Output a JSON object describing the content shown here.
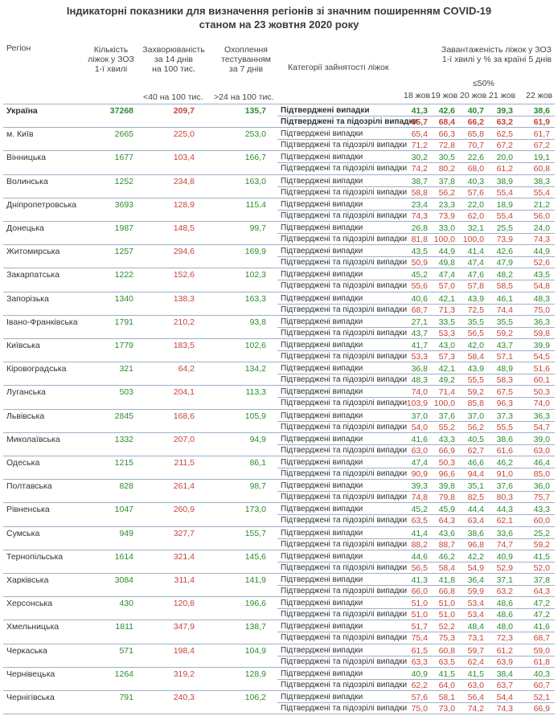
{
  "title": {
    "line1": "Індикаторні показники для визначення регіонів зі значним поширенням COVID-19",
    "line2": "станом на 23 жовтня 2020 року"
  },
  "headers": {
    "region": "Регіон",
    "beds": [
      "Кількість",
      "ліжок у ЗОЗ",
      "1-ї хвилі"
    ],
    "incidence": [
      "Захворюваність",
      "за 14 днів",
      "на 100 тис."
    ],
    "testing": [
      "Охоплення",
      "тестуванням",
      "за 7 днів"
    ],
    "category": "Категорії зайнятості ліжок",
    "load": [
      "Завантаженість ліжок у ЗОЗ",
      "1-ї хвилі у % за країні 5 днів"
    ],
    "threshold_incidence": "<40 на 100 тис.",
    "threshold_testing": ">24 на 100 тис.",
    "threshold_load": "≤50%",
    "days": [
      "18 жов",
      "19 жов",
      "20 жов",
      "21 жов",
      "22 жов"
    ]
  },
  "categories": {
    "confirmed": "Підтверджені випадки",
    "suspected": "Підтверджені та підозрілі випадки"
  },
  "rows": [
    {
      "name": "Україна",
      "beds": "37268",
      "inc": "209,7",
      "test": "135,7",
      "c": [
        "41,3",
        "42,6",
        "40,7",
        "39,3",
        "38,6"
      ],
      "s": [
        "65,7",
        "68,4",
        "66,2",
        "63,2",
        "61,9"
      ]
    },
    {
      "name": "м. Київ",
      "beds": "2665",
      "inc": "225,0",
      "test": "253,0",
      "c": [
        "65,4",
        "66,3",
        "65,8",
        "62,5",
        "61,7"
      ],
      "s": [
        "71,2",
        "72,8",
        "70,7",
        "67,2",
        "67,2"
      ]
    },
    {
      "name": "Вінницька",
      "beds": "1677",
      "inc": "103,4",
      "test": "166,7",
      "c": [
        "30,2",
        "30,5",
        "22,6",
        "20,0",
        "19,1"
      ],
      "s": [
        "74,2",
        "80,2",
        "68,0",
        "61,2",
        "60,8"
      ]
    },
    {
      "name": "Волинська",
      "beds": "1252",
      "inc": "234,8",
      "test": "163,0",
      "c": [
        "38,7",
        "37,8",
        "40,3",
        "38,9",
        "38,3"
      ],
      "s": [
        "58,8",
        "56,2",
        "57,6",
        "55,4",
        "55,4"
      ]
    },
    {
      "name": "Дніпропетровська",
      "beds": "3693",
      "inc": "128,9",
      "test": "115,4",
      "c": [
        "23,4",
        "23,3",
        "22,0",
        "18,9",
        "21,2"
      ],
      "s": [
        "74,3",
        "73,9",
        "62,0",
        "55,4",
        "56,0"
      ]
    },
    {
      "name": "Донецька",
      "beds": "1987",
      "inc": "148,5",
      "test": "99,7",
      "c": [
        "26,8",
        "33,0",
        "32,1",
        "25,5",
        "24,0"
      ],
      "s": [
        "81,8",
        "100,0",
        "100,0",
        "73,9",
        "74,3"
      ]
    },
    {
      "name": "Житомирська",
      "beds": "1257",
      "inc": "294,6",
      "test": "169,9",
      "c": [
        "43,5",
        "44,9",
        "41,4",
        "42,6",
        "44,9"
      ],
      "s": [
        "50,9",
        "49,8",
        "47,4",
        "47,9",
        "52,6"
      ]
    },
    {
      "name": "Закарпатська",
      "beds": "1222",
      "inc": "152,6",
      "test": "102,3",
      "c": [
        "45,2",
        "47,4",
        "47,6",
        "48,2",
        "43,5"
      ],
      "s": [
        "55,6",
        "57,0",
        "57,8",
        "58,5",
        "54,8"
      ]
    },
    {
      "name": "Запорізька",
      "beds": "1340",
      "inc": "138,3",
      "test": "163,3",
      "c": [
        "40,6",
        "42,1",
        "43,9",
        "46,1",
        "48,3"
      ],
      "s": [
        "68,7",
        "71,3",
        "72,5",
        "74,4",
        "75,0"
      ]
    },
    {
      "name": "Івано-Франківська",
      "beds": "1791",
      "inc": "210,2",
      "test": "93,8",
      "c": [
        "27,1",
        "33,5",
        "35,5",
        "35,5",
        "36,3"
      ],
      "s": [
        "43,7",
        "53,3",
        "56,5",
        "59,2",
        "59,8"
      ]
    },
    {
      "name": "Київська",
      "beds": "1779",
      "inc": "183,5",
      "test": "102,6",
      "c": [
        "41,7",
        "43,0",
        "42,0",
        "43,7",
        "39,9"
      ],
      "s": [
        "53,3",
        "57,3",
        "58,4",
        "57,1",
        "54,5"
      ]
    },
    {
      "name": "Кіровоградська",
      "beds": "321",
      "inc": "64,2",
      "test": "134,2",
      "c": [
        "36,8",
        "42,1",
        "43,9",
        "48,9",
        "51,6"
      ],
      "s": [
        "48,3",
        "49,2",
        "55,5",
        "58,3",
        "60,1"
      ]
    },
    {
      "name": "Луганська",
      "beds": "503",
      "inc": "204,1",
      "test": "113,3",
      "c": [
        "74,0",
        "71,4",
        "59,2",
        "67,5",
        "50,3"
      ],
      "s": [
        "103,9",
        "100,0",
        "85,8",
        "96,3",
        "74,0"
      ]
    },
    {
      "name": "Львівська",
      "beds": "2845",
      "inc": "168,6",
      "test": "105,9",
      "c": [
        "37,0",
        "37,6",
        "37,0",
        "37,3",
        "36,3"
      ],
      "s": [
        "54,0",
        "55,2",
        "56,2",
        "55,5",
        "54,7"
      ]
    },
    {
      "name": "Миколаївська",
      "beds": "1332",
      "inc": "207,0",
      "test": "94,9",
      "c": [
        "41,6",
        "43,3",
        "40,5",
        "38,6",
        "39,0"
      ],
      "s": [
        "63,0",
        "66,9",
        "62,7",
        "61,6",
        "63,0"
      ]
    },
    {
      "name": "Одеська",
      "beds": "1215",
      "inc": "211,5",
      "test": "86,1",
      "c": [
        "47,4",
        "50,3",
        "46,6",
        "46,2",
        "46,4"
      ],
      "s": [
        "90,9",
        "96,6",
        "94,4",
        "91,0",
        "85,0"
      ]
    },
    {
      "name": "Полтавська",
      "beds": "828",
      "inc": "261,4",
      "test": "98,7",
      "c": [
        "39,3",
        "39,8",
        "35,1",
        "37,6",
        "36,0"
      ],
      "s": [
        "74,8",
        "79,8",
        "82,5",
        "80,3",
        "75,7"
      ]
    },
    {
      "name": "Рівненська",
      "beds": "1047",
      "inc": "260,9",
      "test": "173,0",
      "c": [
        "45,2",
        "45,9",
        "44,4",
        "44,3",
        "43,3"
      ],
      "s": [
        "63,5",
        "64,3",
        "63,4",
        "62,1",
        "60,0"
      ]
    },
    {
      "name": "Сумська",
      "beds": "949",
      "inc": "327,7",
      "test": "155,7",
      "c": [
        "41,4",
        "43,6",
        "38,6",
        "33,6",
        "25,2"
      ],
      "s": [
        "88,2",
        "88,7",
        "96,8",
        "74,7",
        "59,2"
      ]
    },
    {
      "name": "Тернопільська",
      "beds": "1614",
      "inc": "321,4",
      "test": "145,6",
      "c": [
        "44,6",
        "46,2",
        "42,2",
        "40,9",
        "41,5"
      ],
      "s": [
        "56,5",
        "58,4",
        "54,9",
        "52,9",
        "52,0"
      ]
    },
    {
      "name": "Харківська",
      "beds": "3084",
      "inc": "311,4",
      "test": "141,9",
      "c": [
        "41,3",
        "41,8",
        "36,4",
        "37,1",
        "37,8"
      ],
      "s": [
        "66,0",
        "66,8",
        "59,9",
        "63,2",
        "64,3"
      ]
    },
    {
      "name": "Херсонська",
      "beds": "430",
      "inc": "120,8",
      "test": "196,6",
      "c": [
        "51,0",
        "51,0",
        "53,4",
        "48,6",
        "47,2"
      ],
      "s": [
        "51,0",
        "51,0",
        "53,4",
        "48,6",
        "47,2"
      ]
    },
    {
      "name": "Хмельницька",
      "beds": "1811",
      "inc": "347,9",
      "test": "138,7",
      "c": [
        "51,7",
        "52,2",
        "48,4",
        "48,0",
        "41,6"
      ],
      "s": [
        "75,4",
        "75,3",
        "73,1",
        "72,3",
        "68,7"
      ]
    },
    {
      "name": "Черкаська",
      "beds": "571",
      "inc": "198,4",
      "test": "104,9",
      "c": [
        "61,5",
        "60,8",
        "59,7",
        "61,2",
        "59,0"
      ],
      "s": [
        "63,3",
        "63,5",
        "62,4",
        "63,9",
        "61,8"
      ]
    },
    {
      "name": "Чернівецька",
      "beds": "1264",
      "inc": "319,2",
      "test": "128,9",
      "c": [
        "40,9",
        "41,5",
        "41,5",
        "38,4",
        "40,3"
      ],
      "s": [
        "62,2",
        "64,0",
        "63,0",
        "63,7",
        "60,7"
      ]
    },
    {
      "name": "Чернігівська",
      "beds": "791",
      "inc": "240,3",
      "test": "106,2",
      "c": [
        "57,6",
        "58,1",
        "56,4",
        "54,4",
        "52,1"
      ],
      "s": [
        "75,0",
        "73,0",
        "74,2",
        "74,3",
        "66,9"
      ]
    }
  ],
  "colors": {
    "green": "#2e8b2e",
    "red": "#c8453a",
    "separator": "#9fb0c8"
  }
}
